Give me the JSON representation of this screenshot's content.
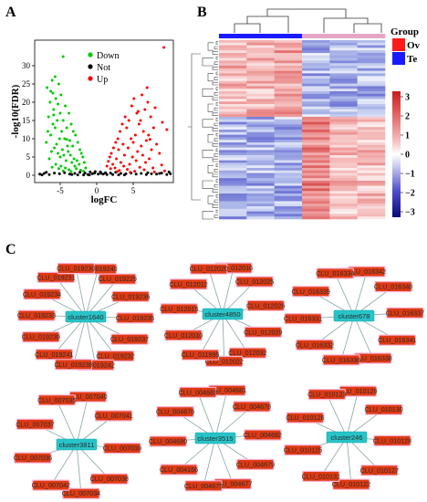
{
  "panels": {
    "a": "A",
    "b": "B",
    "c": "C"
  },
  "chart_data": [
    {
      "type": "scatter",
      "xlabel": "logFC",
      "ylabel": "-log10(FDR)",
      "xlim": [
        -8.5,
        10.5
      ],
      "ylim": [
        -2,
        37
      ],
      "xticks": [
        -5,
        0,
        5
      ],
      "yticks": [
        0,
        5,
        10,
        15,
        20,
        25,
        30
      ],
      "legend_position": "top-center",
      "series": [
        {
          "name": "Down",
          "color": "#00cc00",
          "x": [
            -6.1,
            -5.2,
            -6.8,
            -4.9,
            -5.6,
            -6.4,
            -4.3,
            -5.9,
            -3.8,
            -5.0,
            -6.6,
            -4.6,
            -5.4,
            -3.5,
            -6.0,
            -4.1,
            -5.7,
            -3.2,
            -4.8,
            -6.3,
            -2.9,
            -5.1,
            -4.4,
            -3.7,
            -6.9,
            -2.6,
            -5.5,
            -4.0,
            -3.3,
            -5.8,
            -2.3,
            -4.7,
            -3.9,
            -6.2,
            -2.1,
            -5.3,
            -3.6,
            -4.5,
            -1.9,
            -5.0,
            -3.1,
            -6.5,
            -2.7,
            -4.2,
            -1.7,
            -3.4,
            -5.6,
            -2.4,
            -4.9,
            -3.0,
            -6.1,
            -1.5,
            -4.3,
            -2.8,
            -5.2,
            -3.8,
            -2.2,
            -4.6,
            -1.8,
            -3.5,
            -6.7,
            -5.9,
            -5.3,
            -6.3,
            -4.1,
            -5.7,
            -6.0
          ],
          "y": [
            26,
            25,
            24,
            22,
            21,
            20,
            19,
            18,
            17,
            17,
            16,
            15,
            15,
            14,
            14,
            13,
            13,
            12,
            12,
            11,
            11,
            10,
            10,
            9.5,
            9,
            9,
            8.5,
            8,
            8,
            7.5,
            7,
            7,
            6.5,
            6.5,
            6,
            6,
            5.5,
            5.5,
            5,
            5,
            4.5,
            4.5,
            4,
            4,
            3.5,
            3.5,
            3,
            3,
            2.5,
            2.5,
            2.2,
            2,
            2,
            1.8,
            1.8,
            1.5,
            1.4,
            1.2,
            1.1,
            1,
            12,
            16.5,
            19.5,
            23,
            9.8,
            27,
            22.5
          ]
        },
        {
          "name": "Not",
          "color": "#000000",
          "x": [
            -7.8,
            -7.2,
            -6.5,
            -5.8,
            -5.1,
            -4.4,
            -3.7,
            -3.0,
            -2.3,
            -1.6,
            -0.9,
            -0.2,
            0.5,
            1.2,
            1.9,
            2.6,
            3.3,
            4.0,
            4.7,
            5.4,
            6.1,
            6.8,
            7.5,
            8.2,
            8.9,
            9.6,
            -0.6,
            0.2,
            -1.2,
            0.9,
            -0.3,
            0.6,
            -1.0,
            1.4,
            -1.8,
            2.2,
            -2.6,
            3.0,
            -3.4,
            3.8,
            9.9,
            8.6,
            -7.5,
            7.0,
            -6.9,
            10.1
          ],
          "y": [
            0.3,
            0.5,
            0.2,
            0.6,
            0.4,
            0.7,
            0.3,
            0.5,
            0.8,
            0.6,
            0.9,
            1.0,
            0.9,
            0.7,
            0.6,
            0.8,
            0.5,
            0.4,
            0.6,
            0.3,
            0.5,
            0.2,
            0.4,
            0.3,
            0.6,
            0.2,
            0.4,
            0.3,
            0.2,
            0.3,
            0.6,
            0.5,
            0.1,
            0.2,
            0.1,
            0.2,
            0.1,
            0.1,
            0.2,
            0.1,
            0.9,
            0.5,
            0.1,
            0.7,
            0.8,
            0.4
          ]
        },
        {
          "name": "Up",
          "color": "#ff0000",
          "x": [
            6.2,
            5.1,
            7.0,
            4.8,
            6.6,
            5.5,
            3.9,
            7.4,
            4.4,
            6.0,
            3.5,
            5.8,
            7.8,
            4.1,
            6.4,
            3.2,
            5.3,
            7.1,
            2.9,
            4.7,
            6.8,
            2.6,
            5.0,
            8.2,
            3.6,
            6.1,
            2.3,
            4.3,
            7.5,
            3.0,
            5.6,
            2.0,
            8.6,
            3.8,
            6.3,
            1.8,
            4.9,
            7.2,
            2.7,
            5.4,
            1.6,
            3.3,
            6.7,
            2.2,
            4.5,
            8.9,
            1.4,
            3.7,
            5.9,
            2.5,
            7.7,
            1.9,
            4.2,
            6.5,
            3.1,
            9.3,
            5.2,
            2.8,
            7.9,
            4.6,
            9.0,
            8.0,
            6.9,
            5.7,
            7.3,
            9.6
          ],
          "y": [
            22,
            21,
            20,
            19,
            18,
            17,
            16,
            16,
            15,
            15,
            14,
            14,
            13,
            13,
            12,
            12,
            11,
            11,
            10,
            10,
            9.5,
            9,
            9,
            8.5,
            8.5,
            8,
            7.5,
            7.5,
            7,
            7,
            6.5,
            6,
            6,
            5.5,
            5.5,
            5,
            5,
            4.5,
            4.5,
            4,
            3.8,
            3.5,
            3.5,
            3,
            3,
            2.8,
            2.5,
            2.5,
            2.2,
            2,
            2,
            1.8,
            1.6,
            1.5,
            1.3,
            1.2,
            1.1,
            1,
            0.9,
            0.8,
            14.5,
            18.5,
            24,
            17.5,
            9.8,
            12.5
          ]
        },
        {
          "name": "",
          "color": "#ff0000",
          "x": [
            9.2
          ],
          "y": [
            35
          ]
        },
        {
          "name": "",
          "color": "#00cc00",
          "x": [
            -4.6
          ],
          "y": [
            32.5
          ]
        }
      ]
    },
    {
      "type": "heatmap",
      "group_title": "Group",
      "group_legend": [
        {
          "label": "Ov",
          "color": "#ff1a1a"
        },
        {
          "label": "Te",
          "color": "#1a1aff"
        }
      ],
      "group_bar": [
        "#1a1aff",
        "#1a1aff",
        "#1a1aff",
        "#e8a6c6",
        "#e8a6c6",
        "#e8a6c6"
      ],
      "colorbar": {
        "ticks": [
          "3",
          "2",
          "1",
          "0",
          "−1",
          "−2",
          "−3"
        ],
        "range": [
          -3,
          3
        ],
        "colors": [
          "#0a0a7a",
          "#4a4ac8",
          "#a8b4e8",
          "#ffffff",
          "#f4b6b6",
          "#e26a6a",
          "#c81e1e"
        ]
      }
    }
  ],
  "network": {
    "colors": {
      "node": "#e03a12",
      "hub": "#27c4c8",
      "edge": "#8aa4a8"
    },
    "clusters": [
      {
        "hub": "cluster1640",
        "genes": [
          "CLU_019240",
          "CLU_019229",
          "CLU_019236",
          "CLU_019235",
          "CLU_019237",
          "CLU_019232",
          "CLU_019242",
          "CLU_019238",
          "CLU_019241",
          "CLU_019239",
          "CLU_019233",
          "CLU_019234",
          "CLU_019231",
          "CLU_019230"
        ]
      },
      {
        "hub": "cluster4850",
        "genes": [
          "CLU_012016",
          "CLU_012025",
          "CLU_012026",
          "CLU_012029",
          "CLU_012032",
          "CLU_012022",
          "CLU_011995",
          "CLU_012010",
          "CLU_012015",
          "CLU_012012",
          "CLU_012020"
        ]
      },
      {
        "hub": "cluster678",
        "genes": [
          "CLU_016342",
          "CLU_016340",
          "CLU_016337",
          "CLU_016341",
          "CLU_016338",
          "CLU_016336",
          "CLU_016332",
          "CLU_016331",
          "CLU_016339",
          "CLU_016334"
        ]
      },
      {
        "hub": "cluster3811",
        "genes": [
          "CLU_007040",
          "CLU_007041",
          "CLU_007039",
          "CLU_007038",
          "CLU_007034",
          "CLU_007042",
          "CLU_007036",
          "CLU_007037",
          "CLU_007035"
        ]
      },
      {
        "hub": "cluster3515",
        "genes": [
          "CLU_004681",
          "CLU_004678",
          "CLU_004682",
          "CLU_004679",
          "CLU_004677",
          "CLU_004675",
          "CLU_004166",
          "CLU_004680",
          "CLU_004676",
          "CLU_004683"
        ]
      },
      {
        "hub": "cluster246",
        "genes": [
          "CLU_010129",
          "CLU_010130",
          "CLU_010128",
          "CLU_010127",
          "CLU_010122",
          "CLU_010131",
          "CLU_010125",
          "CLU_010126",
          "CLU_010123"
        ]
      }
    ]
  }
}
